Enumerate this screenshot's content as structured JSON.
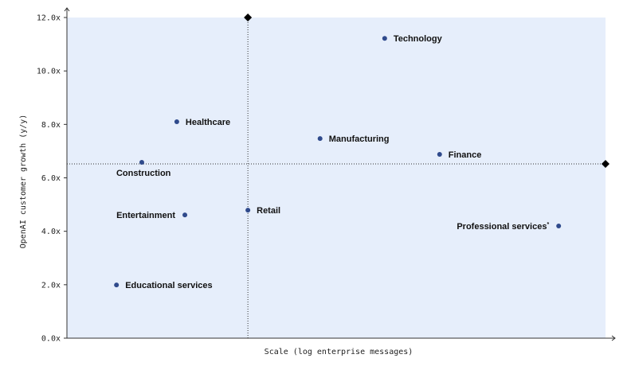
{
  "chart_data": {
    "type": "scatter",
    "xlabel": "Scale (log enterprise messages)",
    "ylabel": "OpenAI customer growth (y/y)",
    "ylim": [
      0,
      12
    ],
    "xlim": [
      0,
      100
    ],
    "yticks": [
      "0.0x",
      "2.0x",
      "4.0x",
      "6.0x",
      "8.0x",
      "10.0x",
      "12.0x"
    ],
    "grid": false,
    "plot_background": "#e6eefb",
    "point_color": "#2f4a8c",
    "reference_lines": {
      "x": 33.6,
      "y": 6.52
    },
    "points": [
      {
        "label": "Technology",
        "x": 59.0,
        "y": 11.22,
        "label_side": "right"
      },
      {
        "label": "Healthcare",
        "x": 20.4,
        "y": 8.1,
        "label_side": "right"
      },
      {
        "label": "Manufacturing",
        "x": 47.0,
        "y": 7.47,
        "label_side": "right"
      },
      {
        "label": "Finance",
        "x": 69.2,
        "y": 6.88,
        "label_side": "right"
      },
      {
        "label": "Construction",
        "x": 13.9,
        "y": 6.58,
        "label_side": "below"
      },
      {
        "label": "Retail",
        "x": 33.6,
        "y": 4.79,
        "label_side": "right"
      },
      {
        "label": "Entertainment",
        "x": 21.9,
        "y": 4.61,
        "label_side": "left"
      },
      {
        "label": "Professional services",
        "x": 91.3,
        "y": 4.2,
        "label_side": "left",
        "footnote": "*"
      },
      {
        "label": "Educational services",
        "x": 9.2,
        "y": 1.99,
        "label_side": "right"
      }
    ]
  }
}
